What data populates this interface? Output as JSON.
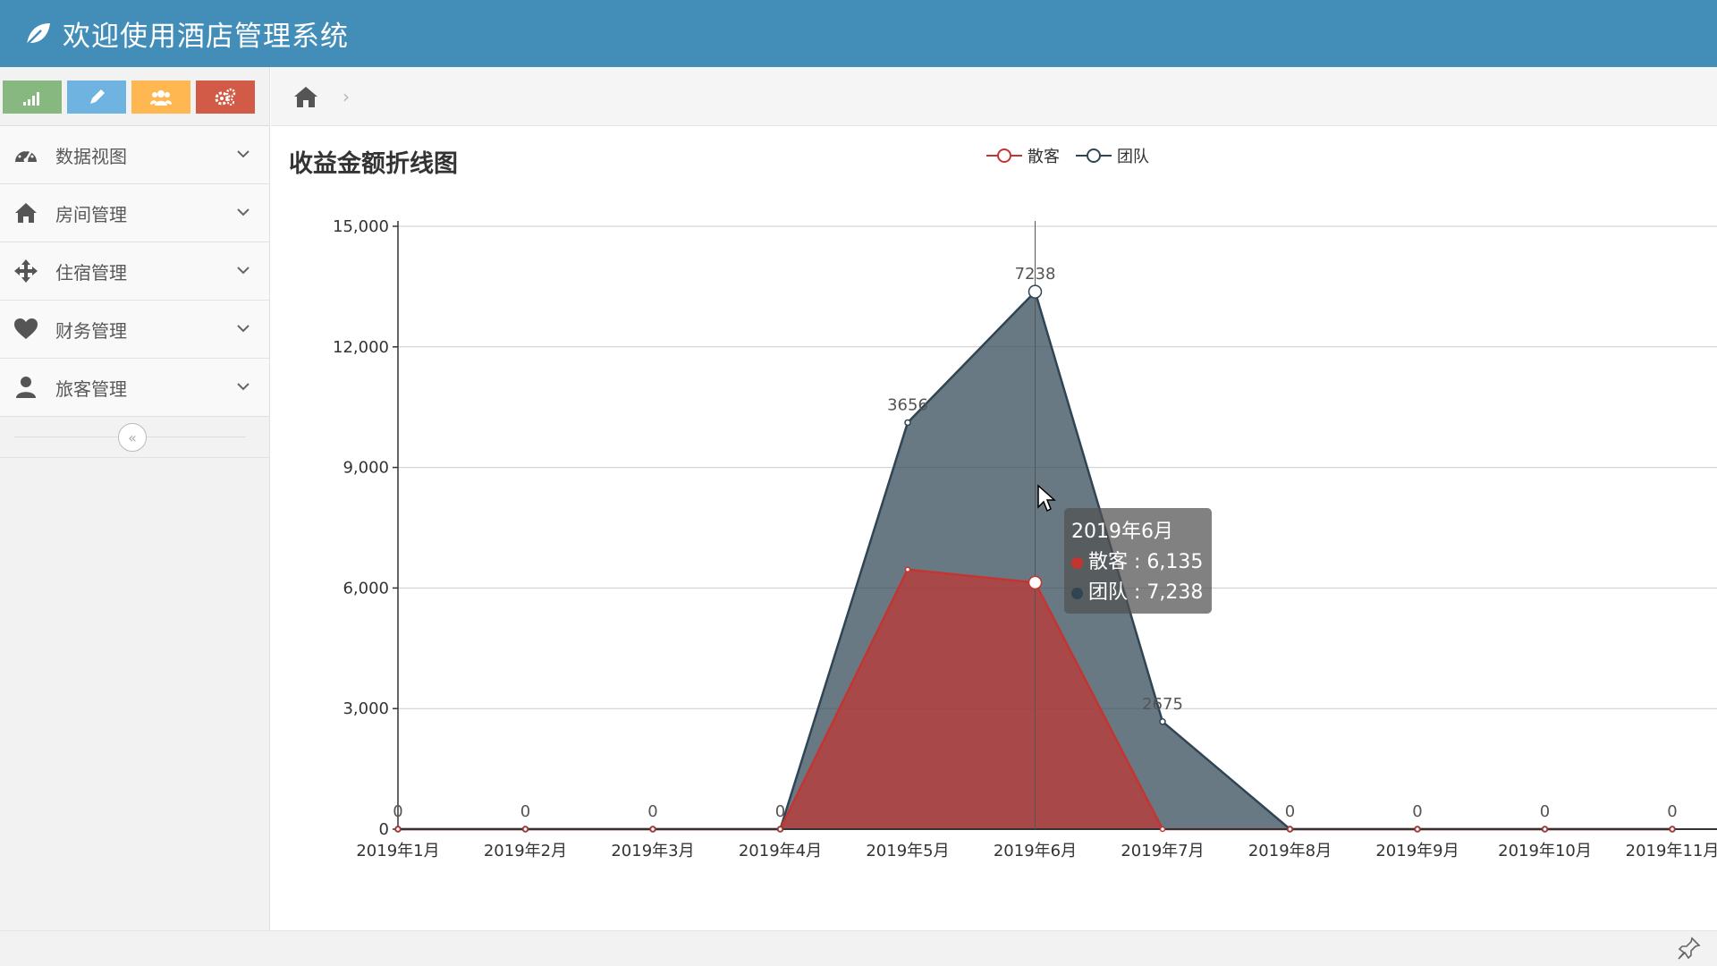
{
  "app": {
    "title": "欢迎使用酒店管理系统"
  },
  "shortcuts": [
    {
      "icon": "signal-icon",
      "color": "#87b87f"
    },
    {
      "icon": "pencil-icon",
      "color": "#6fb3e0"
    },
    {
      "icon": "users-icon",
      "color": "#ffb752"
    },
    {
      "icon": "cogs-icon",
      "color": "#d15b47"
    }
  ],
  "sidebar": {
    "items": [
      {
        "label": "数据视图",
        "icon": "dashboard-icon"
      },
      {
        "label": "房间管理",
        "icon": "home-icon"
      },
      {
        "label": "住宿管理",
        "icon": "move-icon"
      },
      {
        "label": "财务管理",
        "icon": "heart-icon"
      },
      {
        "label": "旅客管理",
        "icon": "user-icon"
      }
    ],
    "collapse_label": "«"
  },
  "breadcrumb": {
    "separator": "›"
  },
  "chart": {
    "title": "收益金额折线图"
  },
  "tooltip": {
    "title": "2019年6月",
    "rows": [
      {
        "text": "散客 : 6,135",
        "color": "#c23531"
      },
      {
        "text": "团队 : 7,238",
        "color": "#2f4554"
      }
    ]
  },
  "chart_data": {
    "type": "area",
    "stacked": true,
    "title": "收益金额折线图",
    "x": [
      "2019年1月",
      "2019年2月",
      "2019年3月",
      "2019年4月",
      "2019年5月",
      "2019年6月",
      "2019年7月",
      "2019年8月",
      "2019年9月",
      "2019年10月",
      "2019年11月"
    ],
    "series": [
      {
        "name": "散客",
        "color": "#c23531",
        "values": [
          0,
          0,
          0,
          0,
          6460,
          6135,
          0,
          0,
          0,
          0,
          0
        ]
      },
      {
        "name": "团队",
        "color": "#2f4554",
        "values": [
          0,
          0,
          0,
          0,
          3656,
          7238,
          2675,
          0,
          0,
          0,
          0
        ]
      }
    ],
    "ylim": [
      0,
      15000
    ],
    "yticks": [
      "0",
      "3,000",
      "6,000",
      "9,000",
      "12,000",
      "15,000"
    ],
    "ytick_values": [
      0,
      3000,
      6000,
      9000,
      12000,
      15000
    ],
    "labels_series": "团队",
    "label_texts": [
      "0",
      "0",
      "0",
      "0",
      "3656",
      "7238",
      "2675",
      "0",
      "0",
      "0",
      "0"
    ],
    "grid": true,
    "legend_position": "top"
  }
}
